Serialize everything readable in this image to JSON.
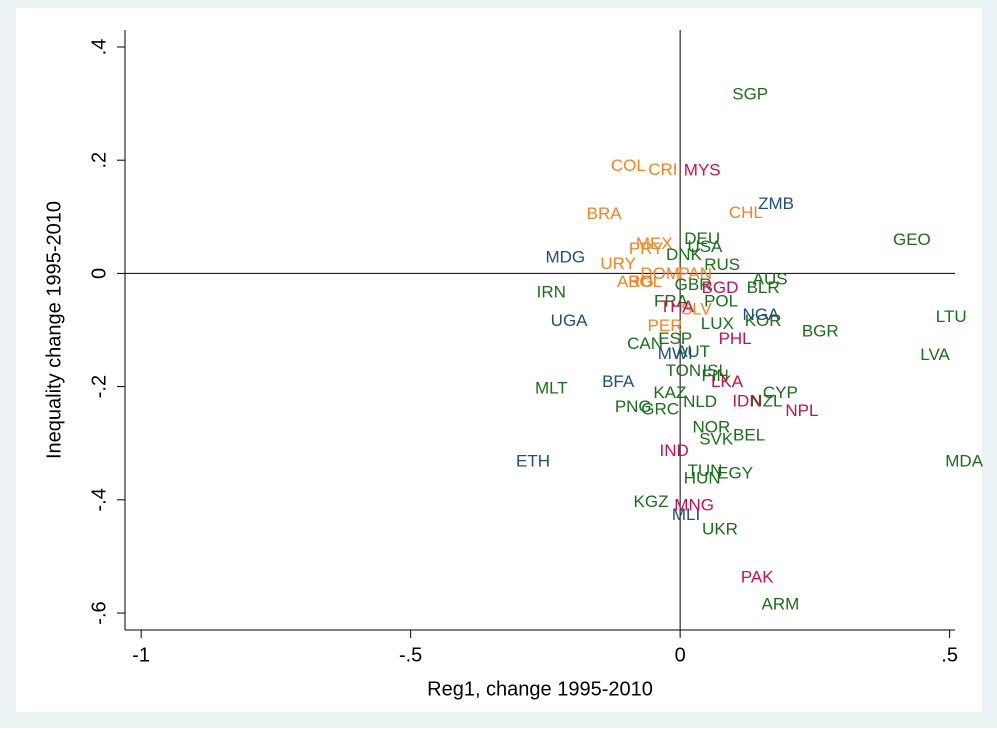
{
  "chart_data": {
    "type": "scatter",
    "x_label": "Reg1, change 1995-2010",
    "y_label": "Inequality change 1995-2010",
    "xlim": [
      -1.03,
      0.51
    ],
    "ylim": [
      -0.63,
      0.43
    ],
    "xticks": [
      -1,
      {
        "value": -0.5,
        "label": "-.5"
      },
      0,
      {
        "value": 0.5,
        "label": ".5"
      }
    ],
    "yticks": [
      {
        "value": 0.4,
        "label": ".4"
      },
      {
        "value": 0.2,
        "label": ".2"
      },
      0,
      {
        "value": -0.2,
        "label": "-.2"
      },
      {
        "value": -0.4,
        "label": "-.4"
      },
      {
        "value": -0.6,
        "label": "-.6"
      }
    ],
    "reference_lines": true,
    "series": [
      {
        "color": "#f58220",
        "labels": [
          "COL",
          "CRI",
          "BRA",
          "CHL",
          "MEX",
          "PRY",
          "URY",
          "ARG",
          "DOM",
          "PAN",
          "PER",
          "SLV",
          "BOL"
        ],
        "x": [
          -0.096,
          -0.032,
          -0.141,
          0.122,
          -0.048,
          -0.063,
          -0.115,
          -0.083,
          -0.037,
          0.028,
          -0.028,
          0.03,
          -0.065
        ],
        "y": [
          0.189,
          0.182,
          0.104,
          0.106,
          0.051,
          0.042,
          0.016,
          -0.016,
          -0.002,
          -0.002,
          -0.094,
          -0.065,
          -0.016
        ]
      },
      {
        "color": "#1a6e1a",
        "labels": [
          "SGP",
          "GEO",
          "DEU",
          "USA",
          "DNK",
          "RUS",
          "GBR",
          "AUS",
          "BLR",
          "POL",
          "FRA",
          "LTU",
          "LUX",
          "KOR",
          "BGR",
          "LVA",
          "CAN",
          "ESP",
          "AUT",
          "IRN",
          "MLT",
          "TON",
          "ISL",
          "FIN",
          "CYP",
          "NZL",
          "KAZ",
          "PNG",
          "GRC",
          "NLD",
          "NOR",
          "SVK",
          "BEL",
          "MDA",
          "TUN",
          "HUN",
          "EGY",
          "KGZ",
          "UKR",
          "ARM"
        ],
        "x": [
          0.13,
          0.43,
          0.041,
          0.046,
          0.007,
          0.078,
          0.024,
          0.167,
          0.154,
          0.076,
          -0.017,
          0.503,
          0.069,
          0.154,
          0.26,
          0.473,
          -0.065,
          -0.009,
          0.024,
          -0.239,
          -0.239,
          0.006,
          0.065,
          0.065,
          0.186,
          0.16,
          -0.019,
          -0.087,
          -0.037,
          0.037,
          0.058,
          0.067,
          0.128,
          0.527,
          0.046,
          0.041,
          0.102,
          -0.054,
          0.074,
          0.186
        ],
        "y": [
          0.315,
          0.058,
          0.06,
          0.046,
          0.032,
          0.014,
          -0.021,
          -0.012,
          -0.027,
          -0.051,
          -0.051,
          -0.078,
          -0.09,
          -0.085,
          -0.104,
          -0.145,
          -0.126,
          -0.117,
          -0.14,
          -0.035,
          -0.204,
          -0.173,
          -0.173,
          -0.182,
          -0.212,
          -0.227,
          -0.212,
          -0.237,
          -0.241,
          -0.228,
          -0.273,
          -0.294,
          -0.287,
          -0.333,
          -0.35,
          -0.363,
          -0.354,
          -0.405,
          -0.453,
          -0.586
        ]
      },
      {
        "color": "#1f4e79",
        "labels": [
          "ZMB",
          "MDG",
          "UGA",
          "NGA",
          "MWI",
          "BFA",
          "ETH",
          "MLI"
        ],
        "x": [
          0.178,
          -0.213,
          -0.206,
          0.15,
          -0.009,
          -0.115,
          -0.273,
          0.011
        ],
        "y": [
          0.122,
          0.027,
          -0.085,
          -0.074,
          -0.143,
          -0.193,
          -0.333,
          -0.428
        ]
      },
      {
        "color": "#c8104c",
        "labels": [
          "MYS",
          "BGD",
          "THA",
          "PHL",
          "LKA",
          "IDN",
          "NPL",
          "IND",
          "MNG",
          "PAK"
        ],
        "x": [
          0.041,
          0.074,
          -0.006,
          0.102,
          0.087,
          0.124,
          0.226,
          -0.011,
          0.026,
          0.143
        ],
        "y": [
          0.181,
          -0.027,
          -0.06,
          -0.117,
          -0.193,
          -0.227,
          -0.244,
          -0.315,
          -0.411,
          -0.538
        ]
      }
    ]
  }
}
